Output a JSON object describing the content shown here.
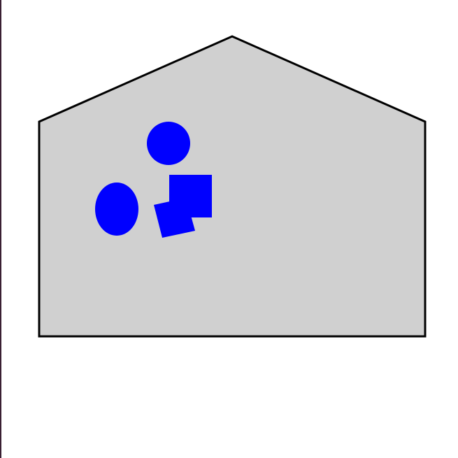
{
  "diagram": {
    "colors": {
      "house_fill": "#d0d0d0",
      "house_stroke": "#000000",
      "shape_fill": "#0000ff",
      "background": "#ffffff",
      "left_edge": "#3a1f33"
    },
    "house": {
      "shape": "pentagon",
      "label": ""
    },
    "items": [
      {
        "id": "circle",
        "kind": "circle",
        "color": "blue"
      },
      {
        "id": "ellipse",
        "kind": "ellipse",
        "color": "blue"
      },
      {
        "id": "square",
        "kind": "square",
        "color": "blue"
      },
      {
        "id": "tilted-square",
        "kind": "rotated-square",
        "color": "blue"
      }
    ]
  }
}
